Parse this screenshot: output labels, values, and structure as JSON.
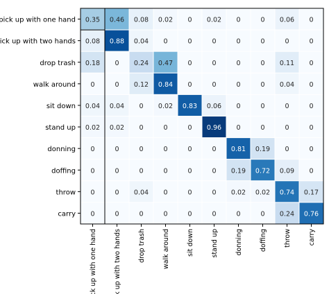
{
  "chart_data": {
    "type": "heatmap",
    "title": "",
    "xlabel": "",
    "ylabel": "",
    "rows": [
      "pick up with one hand",
      "pick up with two hands",
      "drop trash",
      "walk around",
      "sit down",
      "stand up",
      "donning",
      "doffing",
      "throw",
      "carry"
    ],
    "columns": [
      "pick up with one hand",
      "pick up with two hands",
      "drop trash",
      "walk around",
      "sit down",
      "stand up",
      "donning",
      "doffing",
      "throw",
      "carry"
    ],
    "values": [
      [
        0.35,
        0.46,
        0.08,
        0.02,
        0,
        0.02,
        0,
        0,
        0.06,
        0
      ],
      [
        0.08,
        0.88,
        0.04,
        0,
        0,
        0,
        0,
        0,
        0,
        0
      ],
      [
        0.18,
        0,
        0.24,
        0.47,
        0,
        0,
        0,
        0,
        0.11,
        0
      ],
      [
        0,
        0,
        0.12,
        0.84,
        0,
        0,
        0,
        0,
        0.04,
        0
      ],
      [
        0.04,
        0.04,
        0,
        0.02,
        0.83,
        0.06,
        0,
        0,
        0,
        0
      ],
      [
        0.02,
        0.02,
        0,
        0,
        0,
        0.96,
        0,
        0,
        0,
        0
      ],
      [
        0,
        0,
        0,
        0,
        0,
        0,
        0.81,
        0.19,
        0,
        0
      ],
      [
        0,
        0,
        0,
        0,
        0,
        0,
        0.19,
        0.72,
        0.09,
        0
      ],
      [
        0,
        0,
        0.04,
        0,
        0,
        0,
        0.02,
        0.02,
        0.74,
        0.17
      ],
      [
        0,
        0,
        0,
        0,
        0,
        0,
        0,
        0,
        0.24,
        0.76
      ]
    ],
    "colormap": "Blues",
    "value_range": [
      0,
      1
    ],
    "colorbar": false,
    "grid": true
  }
}
